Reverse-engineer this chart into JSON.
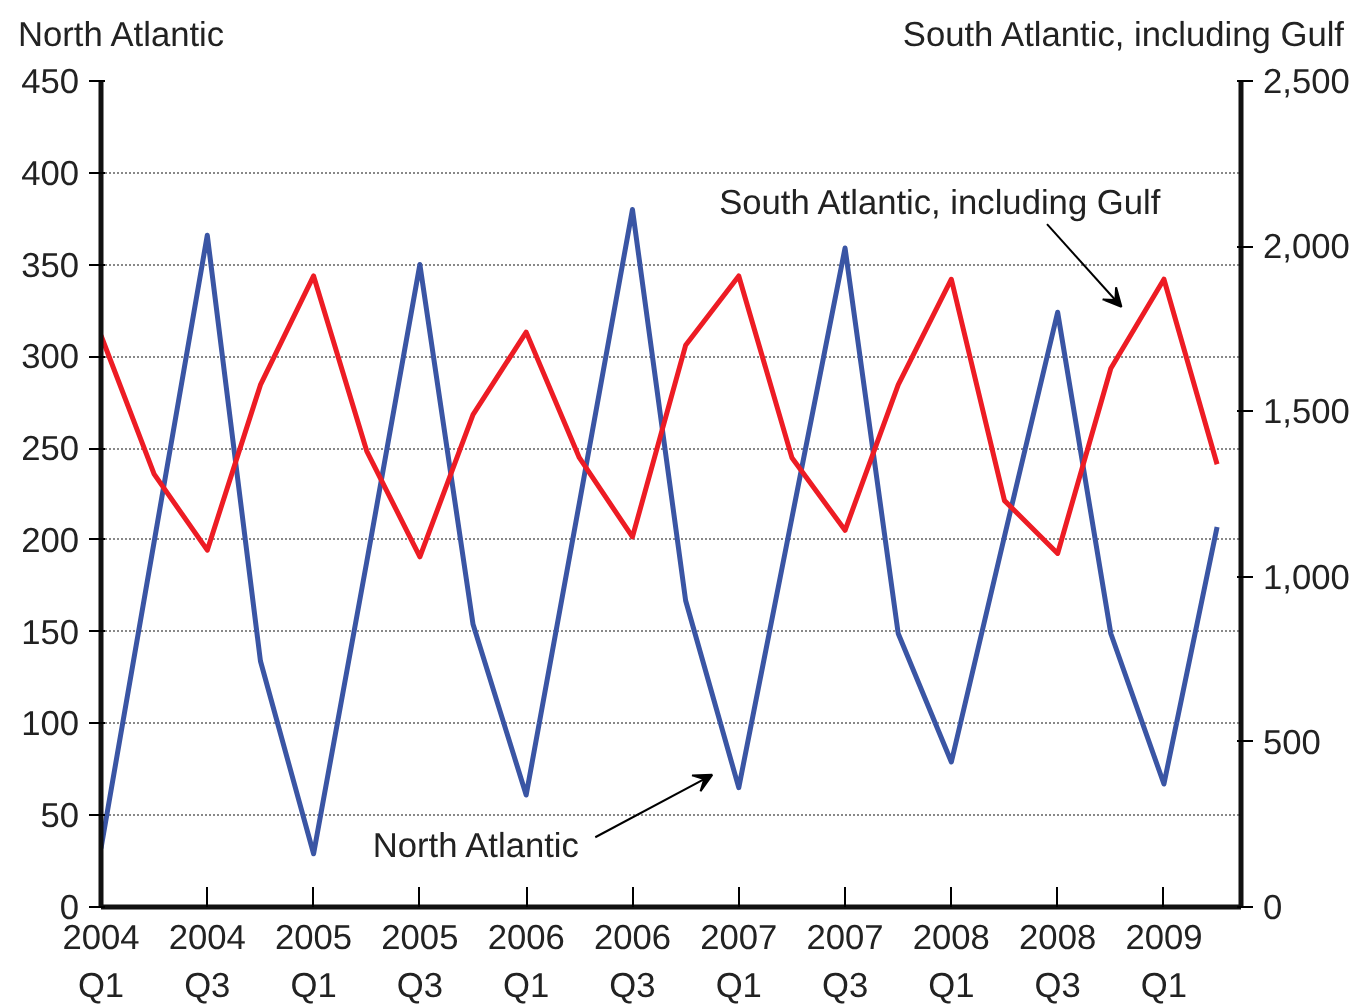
{
  "chart_data": {
    "type": "line",
    "ylabel": "North Atlantic",
    "y2label": "South Atlantic, including Gulf",
    "categories": [
      "2004\nQ1",
      null,
      "2004\nQ3",
      null,
      "2005\nQ1",
      null,
      "2005\nQ3",
      null,
      "2006\nQ1",
      null,
      "2006\nQ3",
      null,
      "2007\nQ1",
      null,
      "2007\nQ3",
      null,
      "2008\nQ1",
      null,
      "2008\nQ3",
      null,
      "2009\nQ1",
      null
    ],
    "series": [
      {
        "name": "North Atlantic",
        "color": "#3a55a4",
        "values": [
          32,
          199,
          366,
          134,
          29,
          188,
          350,
          154,
          61,
          220,
          380,
          167,
          65,
          212,
          359,
          149,
          79,
          202,
          324,
          149,
          67,
          207
        ]
      },
      {
        "name": "South Atlantic, including Gulf",
        "color": "#ed1c24",
        "axis": "y2",
        "values": [
          1730,
          1310,
          1080,
          1580,
          1910,
          1380,
          1060,
          1490,
          1740,
          1360,
          1120,
          1700,
          1910,
          1360,
          1140,
          1580,
          1900,
          1230,
          1070,
          1630,
          1900,
          1340
        ]
      }
    ],
    "ylim": [
      0,
      450
    ],
    "yticks": [
      0,
      50,
      100,
      150,
      200,
      250,
      300,
      350,
      400,
      450
    ],
    "y2lim": [
      0,
      2500
    ],
    "y2ticks": [
      0,
      {
        "value": 500,
        "label": "500"
      },
      {
        "value": 1000,
        "label": "1,000"
      },
      {
        "value": 1500,
        "label": "1,500"
      },
      {
        "value": 2000,
        "label": "2,000"
      },
      {
        "value": 2500,
        "label": "2,500"
      }
    ],
    "grid": "y",
    "line_style": "solid"
  }
}
